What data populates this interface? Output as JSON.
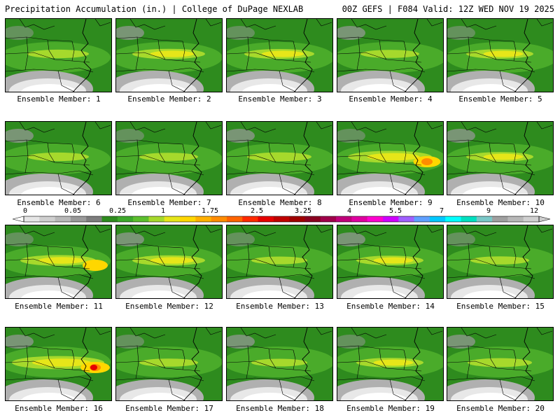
{
  "header": {
    "left": "Precipitation Accumulation (in.) | College of DuPage NEXLAB",
    "right": "00Z GEFS | F084 Valid: 12Z WED NOV 19 2025"
  },
  "members": [
    {
      "label": "Ensemble Member: 1",
      "intensity": 0.35
    },
    {
      "label": "Ensemble Member: 2",
      "intensity": 0.55
    },
    {
      "label": "Ensemble Member: 3",
      "intensity": 0.5
    },
    {
      "label": "Ensemble Member: 4",
      "intensity": 0.3
    },
    {
      "label": "Ensemble Member: 5",
      "intensity": 0.45
    },
    {
      "label": "Ensemble Member: 6",
      "intensity": 0.35
    },
    {
      "label": "Ensemble Member: 7",
      "intensity": 0.3
    },
    {
      "label": "Ensemble Member: 8",
      "intensity": 0.4
    },
    {
      "label": "Ensemble Member: 9",
      "intensity": 0.75
    },
    {
      "label": "Ensemble Member: 10",
      "intensity": 0.45
    },
    {
      "label": "Ensemble Member: 11",
      "intensity": 0.6
    },
    {
      "label": "Ensemble Member: 12",
      "intensity": 0.55
    },
    {
      "label": "Ensemble Member: 13",
      "intensity": 0.25
    },
    {
      "label": "Ensemble Member: 14",
      "intensity": 0.45
    },
    {
      "label": "Ensemble Member: 15",
      "intensity": 0.3
    },
    {
      "label": "Ensemble Member: 16",
      "intensity": 0.9
    },
    {
      "label": "Ensemble Member: 17",
      "intensity": 0.3
    },
    {
      "label": "Ensemble Member: 18",
      "intensity": 0.25
    },
    {
      "label": "Ensemble Member: 19",
      "intensity": 0.45
    },
    {
      "label": "Ensemble Member: 20",
      "intensity": 0.4
    }
  ],
  "colorbar": {
    "tick_labels": [
      "0",
      "0.05",
      "0.25",
      "1",
      "1.75",
      "2.5",
      "3.25",
      "4",
      "5.5",
      "7",
      "9",
      "12"
    ],
    "colors": [
      "#e6e6e6",
      "#cfcfcf",
      "#b8b8b8",
      "#9a9a9a",
      "#7d7d7d",
      "#2e8b1e",
      "#3da82b",
      "#5cbf2e",
      "#a6d92c",
      "#e6e619",
      "#ffd700",
      "#ffb000",
      "#ff8c00",
      "#ff6400",
      "#ff2a00",
      "#e60000",
      "#c00000",
      "#a00000",
      "#8b0020",
      "#a0004a",
      "#c0007a",
      "#e000a0",
      "#ff00d0",
      "#d000ff",
      "#a060ff",
      "#60a0ff",
      "#00c8ff",
      "#00ffff",
      "#00e0c0",
      "#7ac8c8",
      "#a0a0a0",
      "#b8b8b8",
      "#d0d0d0"
    ]
  }
}
